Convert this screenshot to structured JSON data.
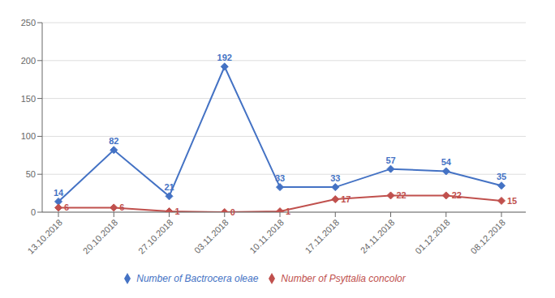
{
  "chart_data": {
    "type": "line",
    "categories": [
      "13.10.2018",
      "20.10.2018",
      "27.10.2018",
      "03.11.2018",
      "10.11.2018",
      "17.11.2018",
      "24.11.2018",
      "01.12.2018",
      "08.12.2018"
    ],
    "series": [
      {
        "name": "Number of Bactrocera oleae",
        "color": "#4472C4",
        "marker": "diamond",
        "values": [
          14,
          82,
          21,
          192,
          33,
          33,
          57,
          54,
          35
        ]
      },
      {
        "name": "Number of Psyttalia concolor",
        "color": "#C0504D",
        "marker": "diamond",
        "values": [
          6,
          6,
          1,
          0,
          1,
          17,
          22,
          22,
          15
        ]
      }
    ],
    "ylim": [
      0,
      250
    ],
    "yticks": [
      0,
      50,
      100,
      150,
      200,
      250
    ],
    "grid": true,
    "legend": "bottom",
    "data_labels": true
  }
}
